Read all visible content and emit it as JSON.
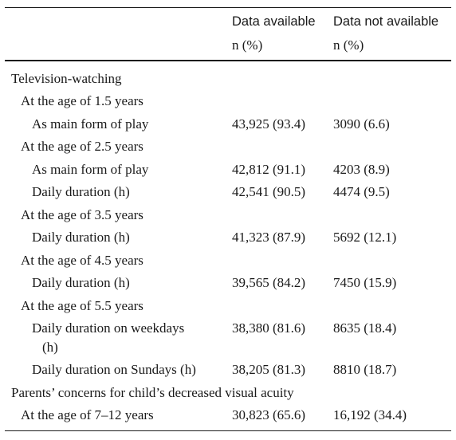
{
  "header": {
    "col1_title": "Data available",
    "col1_unit": "n (%)",
    "col2_title": "Data not available",
    "col2_unit": "n (%)"
  },
  "rows": [
    {
      "label": "Television-watching",
      "available": "",
      "not_available": ""
    },
    {
      "label": "At the age of 1.5 years",
      "available": "",
      "not_available": ""
    },
    {
      "label": "As main form of play",
      "available": "43,925 (93.4)",
      "not_available": "3090 (6.6)"
    },
    {
      "label": "At the age of 2.5 years",
      "available": "",
      "not_available": ""
    },
    {
      "label": "As main form of play",
      "available": "42,812 (91.1)",
      "not_available": "4203 (8.9)"
    },
    {
      "label": "Daily duration (h)",
      "available": "42,541 (90.5)",
      "not_available": "4474 (9.5)"
    },
    {
      "label": "At the age of 3.5 years",
      "available": "",
      "not_available": ""
    },
    {
      "label": "Daily duration (h)",
      "available": "41,323 (87.9)",
      "not_available": "5692 (12.1)"
    },
    {
      "label": "At the age of 4.5 years",
      "available": "",
      "not_available": ""
    },
    {
      "label": "Daily duration (h)",
      "available": "39,565 (84.2)",
      "not_available": "7450 (15.9)"
    },
    {
      "label": "At the age of 5.5 years",
      "available": "",
      "not_available": ""
    },
    {
      "label": "Daily duration on weekdays",
      "label_cont": "(h)",
      "available": "38,380 (81.6)",
      "not_available": "8635 (18.4)"
    },
    {
      "label": "Daily duration on Sundays (h)",
      "available": "38,205 (81.3)",
      "not_available": "8810 (18.7)"
    },
    {
      "label": "Parents’ concerns for child’s decreased visual acuity",
      "available": "",
      "not_available": ""
    },
    {
      "label": "At the age of 7–12 years",
      "available": "30,823 (65.6)",
      "not_available": "16,192 (34.4)"
    }
  ]
}
